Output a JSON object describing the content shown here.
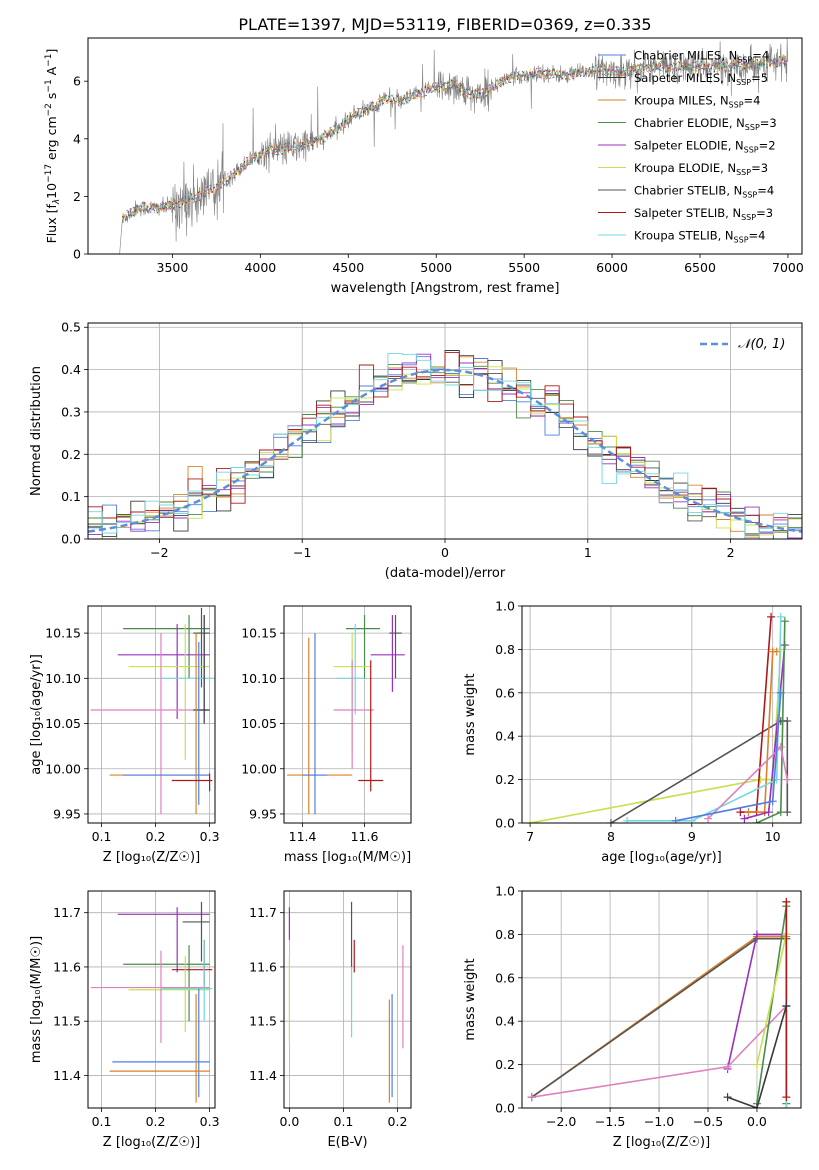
{
  "figure": {
    "title": "PLATE=1397, MJD=53119, FIBERID=0369, z=0.335"
  },
  "colors": {
    "chabrier_miles": "#4f7fe0",
    "salpeter_miles": "#3a3a3a",
    "kroupa_miles": "#d9822b",
    "chabrier_elodie": "#4a8c4a",
    "salpeter_elodie": "#9a30c0",
    "kroupa_elodie": "#c8e050",
    "chabrier_stelib": "#555555",
    "salpeter_stelib": "#b01818",
    "kroupa_stelib": "#70d8e0",
    "pink": "#e080c0",
    "data": "#808080",
    "normal": "#5b8fd9"
  },
  "chart_data": [
    {
      "id": "spectrum",
      "type": "line",
      "xlabel": "wavelength [Angstrom, rest frame]",
      "ylabel_parts": [
        "Flux [f",
        "λ",
        "10",
        "−17",
        " erg cm",
        "−2",
        " s",
        "−1",
        " A",
        "−1",
        "]"
      ],
      "xlim": [
        3020,
        7080
      ],
      "ylim": [
        0,
        7.5
      ],
      "xticks": [
        3500,
        4000,
        4500,
        5000,
        5500,
        6000,
        6500,
        7000
      ],
      "yticks": [
        0,
        2,
        4,
        6
      ],
      "grid": false,
      "legend": {
        "placement": "top-right",
        "entries": [
          {
            "label": "Chabrier MILES, N",
            "sub": "SSP",
            "tail": "=4",
            "color_key": "chabrier_miles"
          },
          {
            "label": "Salpeter MILES, N",
            "sub": "SSP",
            "tail": "=5",
            "color_key": "salpeter_miles"
          },
          {
            "label": "Kroupa MILES, N",
            "sub": "SSP",
            "tail": "=4",
            "color_key": "kroupa_miles"
          },
          {
            "label": "Chabrier ELODIE, N",
            "sub": "SSP",
            "tail": "=3",
            "color_key": "chabrier_elodie"
          },
          {
            "label": "Salpeter ELODIE, N",
            "sub": "SSP",
            "tail": "=2",
            "color_key": "salpeter_elodie"
          },
          {
            "label": "Kroupa ELODIE, N",
            "sub": "SSP",
            "tail": "=3",
            "color_key": "kroupa_elodie"
          },
          {
            "label": "Chabrier STELIB, N",
            "sub": "SSP",
            "tail": "=4",
            "color_key": "chabrier_stelib"
          },
          {
            "label": "Salpeter STELIB, N",
            "sub": "SSP",
            "tail": "=3",
            "color_key": "salpeter_stelib"
          },
          {
            "label": "Kroupa STELIB, N",
            "sub": "SSP",
            "tail": "=4",
            "color_key": "kroupa_stelib"
          }
        ]
      },
      "continuum": [
        [
          3200,
          0
        ],
        [
          3215,
          1.2
        ],
        [
          3300,
          1.6
        ],
        [
          3450,
          1.6
        ],
        [
          3600,
          1.9
        ],
        [
          3750,
          2.3
        ],
        [
          3850,
          2.8
        ],
        [
          3950,
          3.3
        ],
        [
          4050,
          3.6
        ],
        [
          4200,
          3.7
        ],
        [
          4350,
          4.0
        ],
        [
          4450,
          4.4
        ],
        [
          4550,
          4.9
        ],
        [
          4650,
          5.1
        ],
        [
          4700,
          5.4
        ],
        [
          4800,
          5.3
        ],
        [
          4950,
          5.7
        ],
        [
          5100,
          5.9
        ],
        [
          5200,
          5.5
        ],
        [
          5300,
          5.7
        ],
        [
          5400,
          6.1
        ],
        [
          5500,
          6.2
        ],
        [
          5600,
          6.3
        ],
        [
          5750,
          6.2
        ],
        [
          5900,
          6.4
        ],
        [
          6050,
          6.3
        ],
        [
          6200,
          6.5
        ],
        [
          6400,
          6.5
        ],
        [
          6600,
          6.5
        ],
        [
          6800,
          6.6
        ],
        [
          7000,
          6.7
        ]
      ]
    },
    {
      "id": "residuals",
      "type": "histogram",
      "xlabel": "(data-model)/error",
      "ylabel": "Normed distribution",
      "xlim": [
        -2.5,
        2.5
      ],
      "ylim": [
        0,
        0.51
      ],
      "xticks": [
        -2,
        -1,
        0,
        1,
        2
      ],
      "yticks": [
        0.0,
        0.1,
        0.2,
        0.3,
        0.4,
        0.5
      ],
      "grid": true,
      "legend": {
        "placement": "top-right",
        "entries": [
          {
            "label": "𝒩(0, 1)",
            "style": "dashed"
          }
        ]
      },
      "curve": {
        "name": "N(0,1)",
        "mean": 0,
        "sigma": 1
      }
    },
    {
      "id": "age_vs_Z",
      "type": "errorbar",
      "xlabel": "Z [log₁₀(Z/Z☉)]",
      "ylabel": "age  [log₁₀(age/yr)]",
      "xlim": [
        0.075,
        0.31
      ],
      "ylim": [
        9.94,
        10.18
      ],
      "xticks": [
        0.1,
        0.2,
        0.3
      ],
      "yticks": [
        9.95,
        10.0,
        10.05,
        10.1,
        10.15
      ],
      "grid": true,
      "points": [
        {
          "c": "chabrier_elodie",
          "x": 0.262,
          "xe": [
            0.14,
            0.3
          ],
          "y": 10.155,
          "ye": [
            10.1,
            10.17
          ]
        },
        {
          "c": "chabrier_stelib",
          "x": 0.285,
          "xe": [
            0.27,
            0.3
          ],
          "y": 10.15,
          "ye": [
            10.09,
            10.178
          ]
        },
        {
          "c": "salpeter_elodie",
          "x": 0.24,
          "xe": [
            0.13,
            0.3
          ],
          "y": 10.126,
          "ye": [
            10.055,
            10.16
          ]
        },
        {
          "c": "kroupa_elodie",
          "x": 0.255,
          "xe": [
            0.15,
            0.3
          ],
          "y": 10.113,
          "ye": [
            10.01,
            10.16
          ]
        },
        {
          "c": "kroupa_stelib",
          "x": 0.29,
          "xe": [
            0.21,
            0.305
          ],
          "y": 10.1,
          "ye": [
            10.06,
            10.17
          ]
        },
        {
          "c": "pink",
          "x": 0.21,
          "xe": [
            0.08,
            0.3
          ],
          "y": 10.065,
          "ye": [
            9.95,
            10.15
          ]
        },
        {
          "c": "salpeter_miles",
          "x": 0.29,
          "xe": [
            0.27,
            0.3
          ],
          "y": 10.065,
          "ye": [
            10.05,
            10.17
          ]
        },
        {
          "c": "kroupa_miles",
          "x": 0.275,
          "xe": [
            0.115,
            0.3
          ],
          "y": 9.993,
          "ye": [
            9.95,
            10.15
          ]
        },
        {
          "c": "chabrier_miles",
          "x": 0.28,
          "xe": [
            0.14,
            0.3
          ],
          "y": 9.993,
          "ye": [
            9.96,
            10.14
          ]
        },
        {
          "c": "salpeter_stelib",
          "x": 0.3,
          "xe": [
            0.23,
            0.305
          ],
          "y": 9.987,
          "ye": [
            9.975,
            9.995
          ]
        }
      ]
    },
    {
      "id": "age_vs_mass",
      "type": "errorbar",
      "xlabel": "mass [log₁₀(M/M☉)]",
      "ylabel": "",
      "xlim": [
        11.34,
        11.75
      ],
      "ylim": [
        9.94,
        10.18
      ],
      "xticks": [
        11.4,
        11.6
      ],
      "yticks": [
        9.95,
        10.0,
        10.05,
        10.1,
        10.15
      ],
      "grid": true,
      "points": [
        {
          "c": "chabrier_elodie",
          "x": 11.6,
          "xe": [
            11.54,
            11.65
          ],
          "y": 10.155,
          "ye": [
            10.1,
            10.17
          ]
        },
        {
          "c": "chabrier_stelib",
          "x": 11.7,
          "xe": [
            11.68,
            11.72
          ],
          "y": 10.15,
          "ye": [
            10.1,
            10.17
          ]
        },
        {
          "c": "salpeter_elodie",
          "x": 11.69,
          "xe": [
            11.62,
            11.73
          ],
          "y": 10.126,
          "ye": [
            10.085,
            10.17
          ]
        },
        {
          "c": "kroupa_elodie",
          "x": 11.56,
          "xe": [
            11.5,
            11.62
          ],
          "y": 10.113,
          "ye": [
            10.02,
            10.15
          ]
        },
        {
          "c": "kroupa_stelib",
          "x": 11.57,
          "xe": [
            11.51,
            11.6
          ],
          "y": 10.1,
          "ye": [
            10.06,
            10.16
          ]
        },
        {
          "c": "pink",
          "x": 11.56,
          "xe": [
            11.5,
            11.63
          ],
          "y": 10.065,
          "ye": [
            10.0,
            10.12
          ]
        },
        {
          "c": "kroupa_miles",
          "x": 11.42,
          "xe": [
            11.35,
            11.56
          ],
          "y": 9.993,
          "ye": [
            9.95,
            10.145
          ]
        },
        {
          "c": "chabrier_miles",
          "x": 11.44,
          "xe": [
            11.4,
            11.48
          ],
          "y": 9.993,
          "ye": [
            9.95,
            10.15
          ]
        },
        {
          "c": "salpeter_stelib",
          "x": 11.62,
          "xe": [
            11.58,
            11.66
          ],
          "y": 9.987,
          "ye": [
            9.975,
            10.12
          ]
        }
      ]
    },
    {
      "id": "mass_weight_vs_age",
      "type": "line",
      "xlabel": "age  [log₁₀(age/yr)]",
      "ylabel": "mass weight",
      "xlim": [
        6.9,
        10.35
      ],
      "ylim": [
        0,
        1
      ],
      "xticks": [
        7,
        8,
        9,
        10
      ],
      "yticks": [
        0.0,
        0.2,
        0.4,
        0.6,
        0.8,
        1.0
      ],
      "grid": true,
      "series": [
        {
          "c": "kroupa_elodie",
          "x": [
            7.0,
            9.85,
            10.0,
            10.1
          ],
          "y": [
            0.0,
            0.2,
            0.2,
            0.8
          ]
        },
        {
          "c": "chabrier_stelib",
          "x": [
            8.0,
            10.1,
            10.18,
            10.18
          ],
          "y": [
            0.0,
            0.47,
            0.47,
            0.05
          ]
        },
        {
          "c": "salpeter_stelib",
          "x": [
            9.6,
            9.8,
            9.98
          ],
          "y": [
            0.05,
            0.05,
            0.95
          ]
        },
        {
          "c": "kroupa_miles",
          "x": [
            9.7,
            9.9,
            10.0,
            10.05
          ],
          "y": [
            0.05,
            0.05,
            0.79,
            0.79
          ]
        },
        {
          "c": "salpeter_elodie",
          "x": [
            9.65,
            9.95,
            10.15
          ],
          "y": [
            0.02,
            0.05,
            0.82
          ]
        },
        {
          "c": "chabrier_elodie",
          "x": [
            9.8,
            10.1,
            10.15
          ],
          "y": [
            0.0,
            0.05,
            0.93
          ]
        },
        {
          "c": "kroupa_stelib",
          "x": [
            8.2,
            9.0,
            10.05,
            10.1
          ],
          "y": [
            0.01,
            0.01,
            0.2,
            0.95
          ]
        },
        {
          "c": "pink",
          "x": [
            9.2,
            10.1,
            10.18
          ],
          "y": [
            0.02,
            0.35,
            0.2
          ]
        },
        {
          "c": "chabrier_miles",
          "x": [
            8.8,
            10.0,
            10.1
          ],
          "y": [
            0.01,
            0.1,
            0.6
          ]
        }
      ]
    },
    {
      "id": "mass_vs_Z",
      "type": "errorbar",
      "xlabel": "Z [log₁₀(Z/Z☉)]",
      "ylabel": "mass [log₁₀(M/M☉)]",
      "xlim": [
        0.075,
        0.31
      ],
      "ylim": [
        11.34,
        11.74
      ],
      "xticks": [
        0.1,
        0.2,
        0.3
      ],
      "yticks": [
        11.4,
        11.5,
        11.6,
        11.7
      ],
      "grid": true,
      "points": [
        {
          "c": "salpeter_elodie",
          "x": 0.24,
          "xe": [
            0.13,
            0.3
          ],
          "y": 11.697,
          "ye": [
            11.59,
            11.71
          ]
        },
        {
          "c": "chabrier_stelib",
          "x": 0.285,
          "xe": [
            0.25,
            0.3
          ],
          "y": 11.683,
          "ye": [
            11.61,
            11.72
          ]
        },
        {
          "c": "chabrier_elodie",
          "x": 0.262,
          "xe": [
            0.14,
            0.3
          ],
          "y": 11.605,
          "ye": [
            11.5,
            11.64
          ]
        },
        {
          "c": "salpeter_stelib",
          "x": 0.29,
          "xe": [
            0.23,
            0.305
          ],
          "y": 11.595,
          "ye": [
            11.56,
            11.65
          ]
        },
        {
          "c": "kroupa_elodie",
          "x": 0.255,
          "xe": [
            0.15,
            0.3
          ],
          "y": 11.558,
          "ye": [
            11.48,
            11.62
          ]
        },
        {
          "c": "pink",
          "x": 0.21,
          "xe": [
            0.08,
            0.3
          ],
          "y": 11.562,
          "ye": [
            11.46,
            11.63
          ]
        },
        {
          "c": "kroupa_stelib",
          "x": 0.29,
          "xe": [
            0.21,
            0.305
          ],
          "y": 11.56,
          "ye": [
            11.5,
            11.65
          ]
        },
        {
          "c": "chabrier_miles",
          "x": 0.28,
          "xe": [
            0.12,
            0.3
          ],
          "y": 11.425,
          "ye": [
            11.36,
            11.56
          ]
        },
        {
          "c": "kroupa_miles",
          "x": 0.275,
          "xe": [
            0.115,
            0.3
          ],
          "y": 11.408,
          "ye": [
            11.35,
            11.55
          ]
        }
      ]
    },
    {
      "id": "mass_vs_ebv",
      "type": "errorbar",
      "xlabel": "E(B-V)",
      "ylabel": "",
      "xlim": [
        -0.01,
        0.225
      ],
      "ylim": [
        11.34,
        11.74
      ],
      "xticks": [
        0.0,
        0.1,
        0.2
      ],
      "yticks": [
        11.4,
        11.5,
        11.6,
        11.7
      ],
      "grid": true,
      "points": [
        {
          "c": "salpeter_elodie",
          "x": 0.0,
          "xe": [
            0.0,
            0.0
          ],
          "y": 11.697,
          "ye": [
            11.65,
            11.71
          ]
        },
        {
          "c": "kroupa_elodie",
          "x": 0.0,
          "xe": [
            0.0,
            0.0
          ],
          "y": 11.56,
          "ye": [
            11.46,
            11.62
          ]
        },
        {
          "c": "chabrier_stelib",
          "x": 0.115,
          "xe": [
            0.115,
            0.115
          ],
          "y": 11.66,
          "ye": [
            11.6,
            11.72
          ]
        },
        {
          "c": "salpeter_stelib",
          "x": 0.12,
          "xe": [
            0.12,
            0.12
          ],
          "y": 11.62,
          "ye": [
            11.59,
            11.65
          ]
        },
        {
          "c": "kroupa_stelib",
          "x": 0.115,
          "xe": [
            0.115,
            0.115
          ],
          "y": 11.53,
          "ye": [
            11.47,
            11.6
          ]
        },
        {
          "c": "kroupa_miles",
          "x": 0.185,
          "xe": [
            0.185,
            0.185
          ],
          "y": 11.45,
          "ye": [
            11.35,
            11.54
          ]
        },
        {
          "c": "chabrier_miles",
          "x": 0.19,
          "xe": [
            0.19,
            0.19
          ],
          "y": 11.46,
          "ye": [
            11.36,
            11.55
          ]
        },
        {
          "c": "pink",
          "x": 0.21,
          "xe": [
            0.21,
            0.21
          ],
          "y": 11.55,
          "ye": [
            11.45,
            11.64
          ]
        }
      ]
    },
    {
      "id": "mass_weight_vs_Z",
      "type": "line",
      "xlabel": "Z [log₁₀(Z/Z☉)]",
      "ylabel": "mass weight",
      "xlim": [
        -2.4,
        0.45
      ],
      "ylim": [
        0,
        1
      ],
      "xticks": [
        -2.0,
        -1.5,
        -1.0,
        -0.5,
        0.0
      ],
      "yticks": [
        0.0,
        0.2,
        0.4,
        0.6,
        0.8,
        1.0
      ],
      "grid": true,
      "series": [
        {
          "c": "kroupa_miles",
          "x": [
            -2.3,
            0.0,
            0.3
          ],
          "y": [
            0.05,
            0.79,
            0.79
          ]
        },
        {
          "c": "chabrier_stelib",
          "x": [
            -2.3,
            0.0,
            0.3
          ],
          "y": [
            0.05,
            0.78,
            0.78
          ]
        },
        {
          "c": "salpeter_elodie",
          "x": [
            -0.3,
            0.0,
            0.3
          ],
          "y": [
            0.18,
            0.8,
            0.8
          ]
        },
        {
          "c": "pink",
          "x": [
            -2.3,
            -0.3,
            0.3
          ],
          "y": [
            0.05,
            0.19,
            0.47
          ]
        },
        {
          "c": "chabrier_elodie",
          "x": [
            0.0,
            0.3,
            0.3
          ],
          "y": [
            0.02,
            0.93,
            0.02
          ]
        },
        {
          "c": "kroupa_stelib",
          "x": [
            0.3,
            0.3
          ],
          "y": [
            0.0,
            0.95
          ]
        },
        {
          "c": "kroupa_elodie",
          "x": [
            0.0,
            0.3
          ],
          "y": [
            0.2,
            0.8
          ]
        },
        {
          "c": "salpeter_stelib",
          "x": [
            0.3,
            0.3
          ],
          "y": [
            0.05,
            0.95
          ]
        },
        {
          "c": "salpeter_miles",
          "x": [
            -0.3,
            0.0,
            0.3,
            0.3
          ],
          "y": [
            0.05,
            0.0,
            0.47,
            0.47
          ]
        }
      ]
    }
  ]
}
